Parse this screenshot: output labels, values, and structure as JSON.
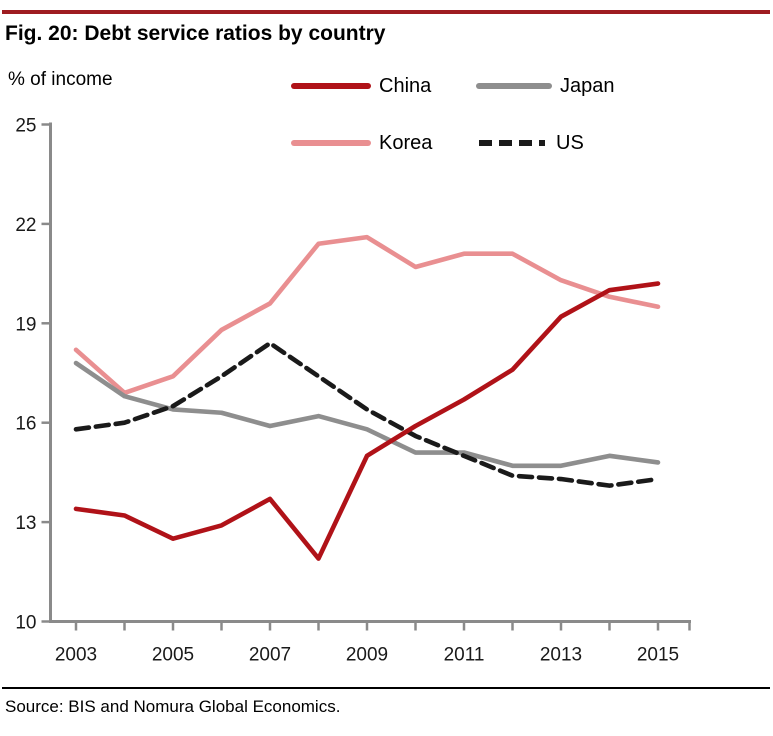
{
  "header": {
    "title": "Fig. 20: Debt service ratios by country"
  },
  "chart": {
    "unit_label": "% of income"
  },
  "legend": {
    "items": [
      {
        "label": "China",
        "color": "#b01218",
        "dash": false
      },
      {
        "label": "Japan",
        "color": "#8e8e8e",
        "dash": false
      },
      {
        "label": "Korea",
        "color": "#e98f91",
        "dash": false
      },
      {
        "label": "US",
        "color": "#1a1a1a",
        "dash": true
      }
    ]
  },
  "footer": {
    "source": "Source: BIS and Nomura Global Economics."
  },
  "colors": {
    "accent_rule": "#9e1c21",
    "axis": "#8a8a8a",
    "china": "#b01218",
    "japan": "#8e8e8e",
    "korea": "#e98f91",
    "us": "#1a1a1a"
  },
  "chart_data": {
    "type": "line",
    "title": "Fig. 20: Debt service ratios by country",
    "ylabel": "% of income",
    "x": [
      2003,
      2004,
      2005,
      2006,
      2007,
      2008,
      2009,
      2010,
      2011,
      2012,
      2013,
      2014,
      2015
    ],
    "xticks_labeled": [
      2003,
      2005,
      2007,
      2009,
      2011,
      2013,
      2015
    ],
    "ylim": [
      10,
      25
    ],
    "yticks": [
      10,
      13,
      16,
      19,
      22,
      25
    ],
    "grid": false,
    "legend_position": "top",
    "series": [
      {
        "name": "China",
        "color": "#b01218",
        "dash": false,
        "values": [
          13.4,
          13.2,
          12.5,
          12.9,
          13.7,
          11.9,
          15.0,
          15.9,
          16.7,
          17.6,
          19.2,
          20.0,
          20.2
        ]
      },
      {
        "name": "Japan",
        "color": "#8e8e8e",
        "dash": false,
        "values": [
          17.8,
          16.8,
          16.4,
          16.3,
          15.9,
          16.2,
          15.8,
          15.1,
          15.1,
          14.7,
          14.7,
          15.0,
          14.8
        ]
      },
      {
        "name": "Korea",
        "color": "#e98f91",
        "dash": false,
        "values": [
          18.2,
          16.9,
          17.4,
          18.8,
          19.6,
          21.4,
          21.6,
          20.7,
          21.1,
          21.1,
          20.3,
          19.8,
          19.5
        ]
      },
      {
        "name": "US",
        "color": "#1a1a1a",
        "dash": true,
        "values": [
          15.8,
          16.0,
          16.5,
          17.4,
          18.4,
          17.4,
          16.4,
          15.6,
          15.0,
          14.4,
          14.3,
          14.1,
          14.3
        ]
      }
    ]
  }
}
